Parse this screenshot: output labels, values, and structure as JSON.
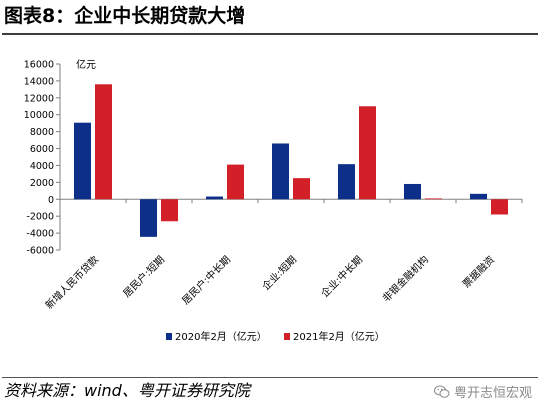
{
  "header": {
    "title": "图表8：企业中长期贷款大增"
  },
  "footer": {
    "source": "资料来源：wind、粤开证券研究院",
    "watermark": "粤开志恒宏观",
    "watermark_icon": "wechat-icon"
  },
  "colors": {
    "series_2020": "#0d2f8a",
    "series_2021": "#d21f28",
    "axis": "#808080"
  },
  "chart_data": {
    "type": "bar",
    "unit_label": "亿元",
    "categories": [
      "新增人民币贷款",
      "居民户:短期",
      "居民户:中长期",
      "企业:短期",
      "企业:中长期",
      "非银金融机构",
      "票据融资"
    ],
    "series": [
      {
        "name": "2020年2月（亿元）",
        "values": [
          9057,
          -4443,
          324,
          6600,
          4153,
          1810,
          643
        ]
      },
      {
        "name": "2021年2月（亿元）",
        "values": [
          13600,
          -2600,
          4100,
          2500,
          11000,
          100,
          -1800
        ]
      }
    ],
    "ylim": [
      -6000,
      16000
    ],
    "yticks": [
      -6000,
      -4000,
      -2000,
      0,
      2000,
      4000,
      6000,
      8000,
      10000,
      12000,
      14000,
      16000
    ],
    "legend_position": "bottom",
    "grid": false
  }
}
